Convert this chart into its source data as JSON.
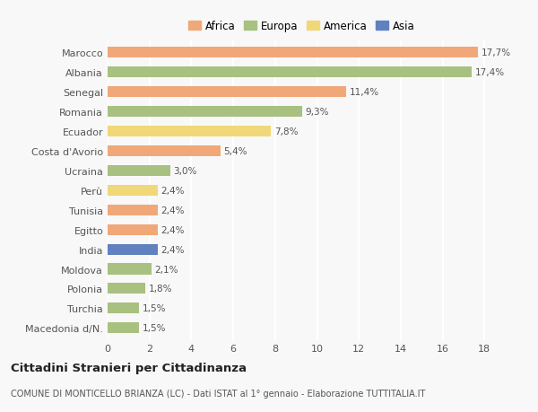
{
  "countries": [
    "Marocco",
    "Albania",
    "Senegal",
    "Romania",
    "Ecuador",
    "Costa d'Avorio",
    "Ucraina",
    "Perù",
    "Tunisia",
    "Egitto",
    "India",
    "Moldova",
    "Polonia",
    "Turchia",
    "Macedonia d/N."
  ],
  "values": [
    17.7,
    17.4,
    11.4,
    9.3,
    7.8,
    5.4,
    3.0,
    2.4,
    2.4,
    2.4,
    2.4,
    2.1,
    1.8,
    1.5,
    1.5
  ],
  "labels": [
    "17,7%",
    "17,4%",
    "11,4%",
    "9,3%",
    "7,8%",
    "5,4%",
    "3,0%",
    "2,4%",
    "2,4%",
    "2,4%",
    "2,4%",
    "2,1%",
    "1,8%",
    "1,5%",
    "1,5%"
  ],
  "colors": [
    "#f0a878",
    "#a8c080",
    "#f0a878",
    "#a8c080",
    "#f0d878",
    "#f0a878",
    "#a8c080",
    "#f0d878",
    "#f0a878",
    "#f0a878",
    "#6080c0",
    "#a8c080",
    "#a8c080",
    "#a8c080",
    "#a8c080"
  ],
  "legend_labels": [
    "Africa",
    "Europa",
    "America",
    "Asia"
  ],
  "legend_colors": [
    "#f0a878",
    "#a8c080",
    "#f0d878",
    "#6080c0"
  ],
  "title": "Cittadini Stranieri per Cittadinanza",
  "subtitle": "COMUNE DI MONTICELLO BRIANZA (LC) - Dati ISTAT al 1° gennaio - Elaborazione TUTTITALIA.IT",
  "xlim": [
    0,
    18
  ],
  "xticks": [
    0,
    2,
    4,
    6,
    8,
    10,
    12,
    14,
    16,
    18
  ],
  "background_color": "#f8f8f8",
  "grid_color": "#ffffff",
  "bar_height": 0.55
}
